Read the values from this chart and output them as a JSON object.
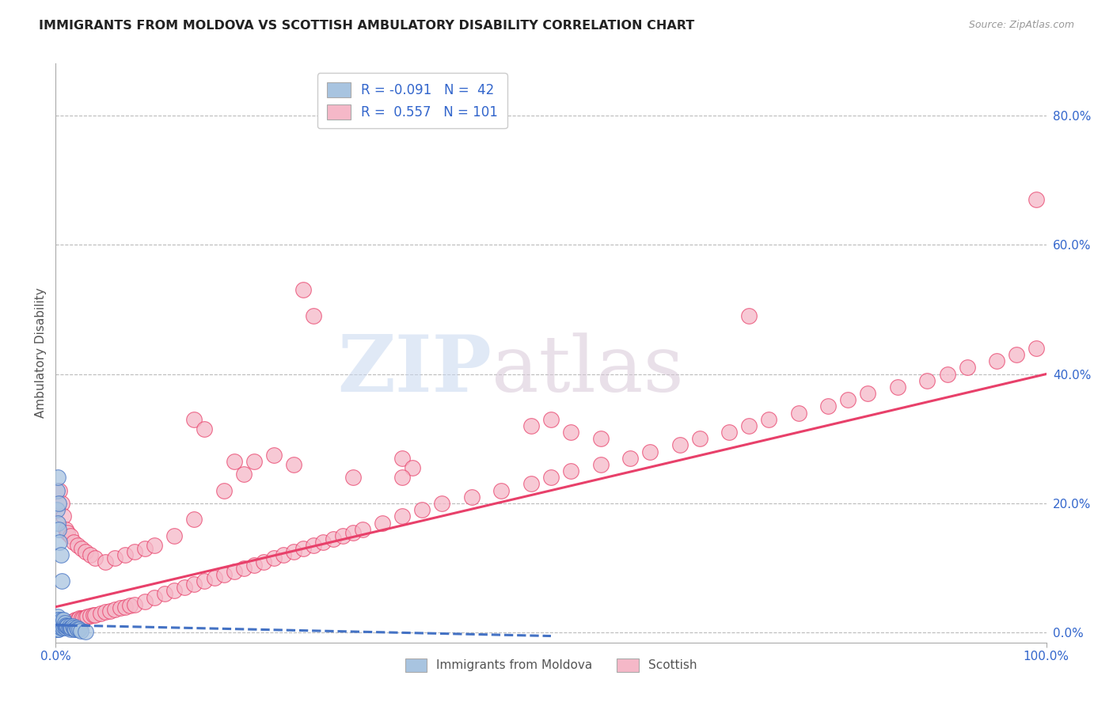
{
  "title": "IMMIGRANTS FROM MOLDOVA VS SCOTTISH AMBULATORY DISABILITY CORRELATION CHART",
  "source": "Source: ZipAtlas.com",
  "ylabel": "Ambulatory Disability",
  "xlim": [
    0,
    1.0
  ],
  "ylim": [
    -0.015,
    0.88
  ],
  "r_moldova": -0.091,
  "n_moldova": 42,
  "r_scottish": 0.557,
  "n_scottish": 101,
  "blue_color": "#A8C4E0",
  "pink_color": "#F5B8C8",
  "blue_line_color": "#4472C4",
  "pink_line_color": "#E8406A",
  "blue_scatter_x": [
    0.001,
    0.001,
    0.001,
    0.001,
    0.002,
    0.002,
    0.002,
    0.002,
    0.003,
    0.003,
    0.003,
    0.003,
    0.004,
    0.004,
    0.005,
    0.005,
    0.006,
    0.006,
    0.007,
    0.007,
    0.008,
    0.008,
    0.009,
    0.009,
    0.01,
    0.01,
    0.011,
    0.012,
    0.013,
    0.014,
    0.015,
    0.015,
    0.016,
    0.017,
    0.018,
    0.019,
    0.02,
    0.021,
    0.022,
    0.024,
    0.025,
    0.03
  ],
  "blue_scatter_y": [
    0.005,
    0.01,
    0.015,
    0.02,
    0.005,
    0.01,
    0.02,
    0.025,
    0.005,
    0.01,
    0.015,
    0.02,
    0.01,
    0.015,
    0.008,
    0.012,
    0.01,
    0.02,
    0.008,
    0.015,
    0.01,
    0.02,
    0.01,
    0.015,
    0.008,
    0.012,
    0.01,
    0.01,
    0.008,
    0.01,
    0.005,
    0.008,
    0.008,
    0.01,
    0.008,
    0.005,
    0.005,
    0.008,
    0.005,
    0.005,
    0.003,
    0.002
  ],
  "blue_extra_x": [
    0.001,
    0.001,
    0.002,
    0.002,
    0.003,
    0.003,
    0.004,
    0.005,
    0.006
  ],
  "blue_extra_y": [
    0.22,
    0.19,
    0.17,
    0.24,
    0.2,
    0.16,
    0.14,
    0.12,
    0.08
  ],
  "pink_scatter_x": [
    0.003,
    0.004,
    0.005,
    0.006,
    0.007,
    0.008,
    0.009,
    0.01,
    0.012,
    0.013,
    0.014,
    0.015,
    0.016,
    0.017,
    0.018,
    0.019,
    0.02,
    0.022,
    0.024,
    0.026,
    0.028,
    0.03,
    0.032,
    0.035,
    0.038,
    0.04,
    0.045,
    0.05,
    0.055,
    0.06,
    0.065,
    0.07,
    0.075,
    0.08,
    0.09,
    0.1,
    0.11,
    0.12,
    0.13,
    0.14,
    0.15,
    0.16,
    0.17,
    0.18,
    0.19,
    0.2,
    0.21,
    0.22,
    0.23,
    0.24,
    0.25,
    0.26,
    0.27,
    0.28,
    0.29,
    0.3,
    0.31,
    0.33,
    0.35,
    0.37,
    0.39,
    0.42,
    0.45,
    0.48,
    0.5,
    0.52,
    0.55,
    0.58,
    0.6,
    0.63,
    0.65,
    0.68,
    0.7,
    0.72,
    0.75,
    0.78,
    0.8,
    0.82,
    0.85,
    0.88,
    0.9,
    0.92,
    0.95,
    0.97,
    0.99,
    0.004,
    0.006,
    0.008,
    0.01,
    0.012,
    0.015,
    0.018,
    0.022,
    0.026,
    0.03,
    0.035,
    0.04,
    0.05,
    0.06,
    0.07,
    0.08,
    0.09,
    0.1,
    0.12,
    0.14,
    0.17
  ],
  "pink_scatter_y": [
    0.01,
    0.01,
    0.01,
    0.012,
    0.012,
    0.012,
    0.014,
    0.014,
    0.015,
    0.015,
    0.016,
    0.016,
    0.017,
    0.018,
    0.018,
    0.019,
    0.02,
    0.02,
    0.022,
    0.022,
    0.023,
    0.024,
    0.025,
    0.026,
    0.027,
    0.028,
    0.03,
    0.032,
    0.034,
    0.036,
    0.038,
    0.04,
    0.042,
    0.044,
    0.048,
    0.055,
    0.06,
    0.065,
    0.07,
    0.075,
    0.08,
    0.085,
    0.09,
    0.095,
    0.1,
    0.105,
    0.11,
    0.115,
    0.12,
    0.125,
    0.13,
    0.135,
    0.14,
    0.145,
    0.15,
    0.155,
    0.16,
    0.17,
    0.18,
    0.19,
    0.2,
    0.21,
    0.22,
    0.23,
    0.24,
    0.25,
    0.26,
    0.27,
    0.28,
    0.29,
    0.3,
    0.31,
    0.32,
    0.33,
    0.34,
    0.35,
    0.36,
    0.37,
    0.38,
    0.39,
    0.4,
    0.41,
    0.42,
    0.43,
    0.44,
    0.22,
    0.2,
    0.18,
    0.16,
    0.155,
    0.15,
    0.14,
    0.135,
    0.13,
    0.125,
    0.12,
    0.115,
    0.11,
    0.115,
    0.12,
    0.125,
    0.13,
    0.135,
    0.15,
    0.175,
    0.22
  ],
  "pink_outliers_x": [
    0.35,
    0.36,
    0.35,
    0.99,
    0.7,
    0.25,
    0.26,
    0.3,
    0.18,
    0.19,
    0.2,
    0.22,
    0.24,
    0.14,
    0.15,
    0.5,
    0.48,
    0.52,
    0.55
  ],
  "pink_outliers_y": [
    0.27,
    0.255,
    0.24,
    0.67,
    0.49,
    0.53,
    0.49,
    0.24,
    0.265,
    0.245,
    0.265,
    0.275,
    0.26,
    0.33,
    0.315,
    0.33,
    0.32,
    0.31,
    0.3
  ],
  "watermark_zip": "ZIP",
  "watermark_atlas": "atlas",
  "legend_blue_label": "Immigrants from Moldova",
  "legend_pink_label": "Scottish"
}
